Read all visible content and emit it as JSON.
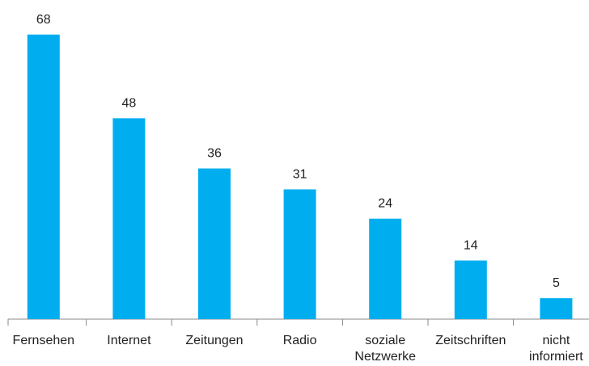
{
  "chart_data": {
    "type": "bar",
    "categories": [
      "Fernsehen",
      "Internet",
      "Zeitungen",
      "Radio",
      "soziale\nNetzwerke",
      "Zeitschriften",
      "nicht\ninformiert"
    ],
    "values": [
      68,
      48,
      36,
      31,
      24,
      14,
      5
    ],
    "color": "#00aeef"
  }
}
